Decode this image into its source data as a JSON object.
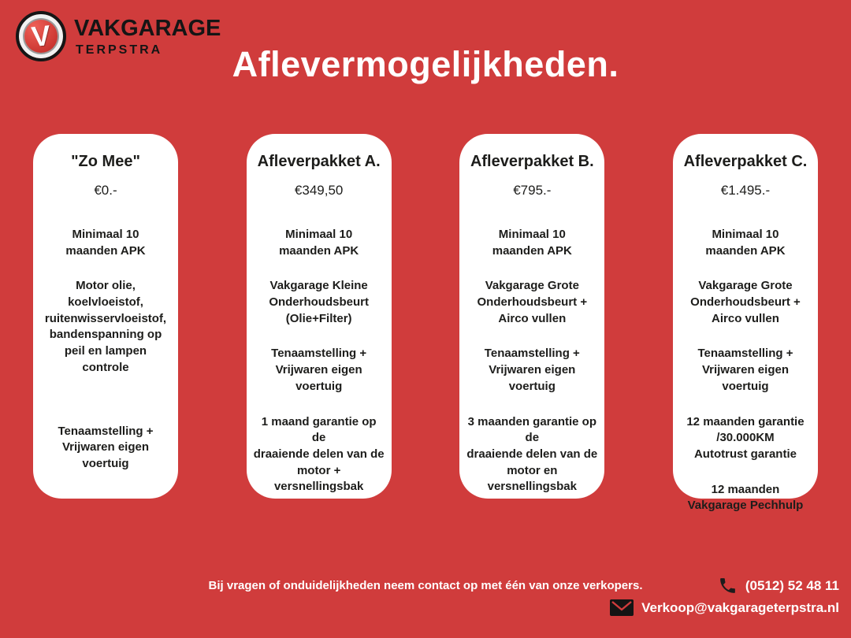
{
  "colors": {
    "background_red": "#d03c3c",
    "card_white": "#ffffff",
    "text_black": "#1d1d1b",
    "footer_text": "#ffffff"
  },
  "header": {
    "logo": {
      "badge_letter": "V",
      "brand": "VAKGARAGE",
      "sub": "TERPSTRA"
    },
    "title": "Aflevermogelijkheden."
  },
  "cards": [
    {
      "title": "\"Zo Mee\"",
      "price": "€0.-",
      "items": [
        "Minimaal 10\nmaanden APK",
        "Motor olie, koelvloeistof,\nruitenwisservloeistof,\nbandenspanning op\npeil en lampen controle",
        "",
        "Tenaamstelling +\nVrijwaren eigen voertuig"
      ]
    },
    {
      "title": "Afleverpakket A.",
      "price": "€349,50",
      "items": [
        "Minimaal 10\nmaanden APK",
        "Vakgarage Kleine\nOnderhoudsbeurt\n(Olie+Filter)",
        "Tenaamstelling +\nVrijwaren eigen voertuig",
        "1 maand garantie op de\ndraaiende delen van de\nmotor + versnellingsbak"
      ]
    },
    {
      "title": "Afleverpakket B.",
      "price": "€795.-",
      "items": [
        "Minimaal 10\nmaanden APK",
        "Vakgarage Grote\nOnderhoudsbeurt +\nAirco vullen",
        "Tenaamstelling +\nVrijwaren eigen voertuig",
        "3 maanden garantie op de\ndraaiende delen van de\nmotor en versnellingsbak"
      ]
    },
    {
      "title": "Afleverpakket C.",
      "price": "€1.495.-",
      "items": [
        "Minimaal 10\nmaanden APK",
        "Vakgarage Grote\nOnderhoudsbeurt +\nAirco vullen",
        "Tenaamstelling +\nVrijwaren eigen voertuig",
        "12 maanden garantie\n/30.000KM\nAutotrust garantie",
        "12 maanden\nVakgarage Pechhulp"
      ]
    }
  ],
  "footer": {
    "note": "Bij vragen of onduidelijkheden neem contact op met één van onze verkopers.",
    "phone": "(0512) 52 48 11",
    "email": "Verkoop@vakgarageterpstra.nl"
  }
}
